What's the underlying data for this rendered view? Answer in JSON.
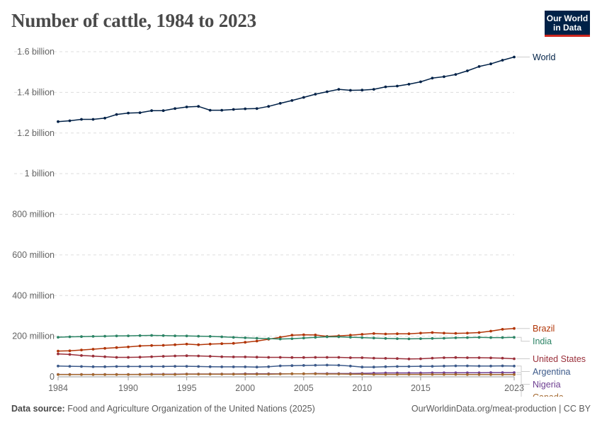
{
  "title": "Number of cattle, 1984 to 2023",
  "logo": {
    "line1": "Our World",
    "line2": "in Data"
  },
  "footer": {
    "source_label": "Data source:",
    "source_text": "Food and Agriculture Organization of the United Nations (2025)",
    "url": "OurWorldinData.org/meat-production | CC BY"
  },
  "chart_data": {
    "type": "line",
    "title": "Number of cattle, 1984 to 2023",
    "xlabel": "",
    "ylabel": "",
    "xlim": [
      1984,
      2023
    ],
    "ylim": [
      0,
      1600000000
    ],
    "grid": true,
    "legend": "right",
    "x": [
      1984,
      1985,
      1986,
      1987,
      1988,
      1989,
      1990,
      1991,
      1992,
      1993,
      1994,
      1995,
      1996,
      1997,
      1998,
      1999,
      2000,
      2001,
      2002,
      2003,
      2004,
      2005,
      2006,
      2007,
      2008,
      2009,
      2010,
      2011,
      2012,
      2013,
      2014,
      2015,
      2016,
      2017,
      2018,
      2019,
      2020,
      2021,
      2022,
      2023
    ],
    "x_ticks": [
      1984,
      1990,
      1995,
      2000,
      2005,
      2010,
      2015,
      2023
    ],
    "x_tick_labels": [
      "1984",
      "1990",
      "1995",
      "2000",
      "2005",
      "2010",
      "2015",
      "2023"
    ],
    "y_ticks": [
      0,
      200000000,
      400000000,
      600000000,
      800000000,
      1000000000,
      1200000000,
      1400000000,
      1600000000
    ],
    "y_tick_labels": [
      "0",
      "200 million",
      "400 million",
      "600 million",
      "800 million",
      "1 billion",
      "1.2 billion",
      "1.4 billion",
      "1.6 billion"
    ],
    "series": [
      {
        "name": "World",
        "color": "#002147",
        "values": [
          1256000000,
          1260000000,
          1267000000,
          1267000000,
          1273000000,
          1291000000,
          1298000000,
          1300000000,
          1310000000,
          1310000000,
          1320000000,
          1328000000,
          1331000000,
          1312000000,
          1312000000,
          1316000000,
          1319000000,
          1320000000,
          1331000000,
          1346000000,
          1360000000,
          1375000000,
          1391000000,
          1403000000,
          1415000000,
          1410000000,
          1411000000,
          1415000000,
          1427000000,
          1431000000,
          1440000000,
          1452000000,
          1470000000,
          1477000000,
          1488000000,
          1506000000,
          1527000000,
          1540000000,
          1558000000,
          1574000000
        ]
      },
      {
        "name": "Brazil",
        "color": "#b13507",
        "values": [
          127000000,
          128000000,
          132000000,
          136000000,
          140000000,
          144000000,
          147000000,
          152000000,
          154000000,
          155000000,
          158000000,
          161000000,
          158000000,
          161000000,
          163000000,
          165000000,
          170000000,
          176000000,
          185000000,
          195000000,
          205000000,
          207000000,
          206000000,
          199000000,
          202000000,
          205000000,
          209000000,
          213000000,
          211000000,
          212000000,
          212000000,
          215000000,
          218000000,
          215000000,
          214000000,
          215000000,
          218000000,
          225000000,
          234000000,
          238000000
        ]
      },
      {
        "name": "India",
        "color": "#2c8465",
        "values": [
          195000000,
          197000000,
          198000000,
          199000000,
          200000000,
          201000000,
          202000000,
          203000000,
          204000000,
          203000000,
          202000000,
          201000000,
          200000000,
          199000000,
          197000000,
          194000000,
          192000000,
          190000000,
          188000000,
          186000000,
          188000000,
          191000000,
          194000000,
          197000000,
          197000000,
          195000000,
          193000000,
          191000000,
          189000000,
          188000000,
          187000000,
          188000000,
          189000000,
          190000000,
          192000000,
          193000000,
          194000000,
          193000000,
          193000000,
          194000000
        ]
      },
      {
        "name": "United States",
        "color": "#9a2f3a",
        "values": [
          113000000,
          110000000,
          105000000,
          102000000,
          99000000,
          96000000,
          96000000,
          97000000,
          99000000,
          101000000,
          103000000,
          104000000,
          103000000,
          101000000,
          99000000,
          98000000,
          98000000,
          97000000,
          96000000,
          96000000,
          95000000,
          95000000,
          96000000,
          96000000,
          96000000,
          94000000,
          94000000,
          92000000,
          91000000,
          90000000,
          88000000,
          89000000,
          92000000,
          94000000,
          95000000,
          94000000,
          94000000,
          93000000,
          92000000,
          89000000
        ]
      },
      {
        "name": "Argentina",
        "color": "#3c5a8a",
        "values": [
          53000000,
          52000000,
          51000000,
          50000000,
          50000000,
          51000000,
          51000000,
          51000000,
          51000000,
          51000000,
          52000000,
          52000000,
          51000000,
          50000000,
          49000000,
          49000000,
          49000000,
          48000000,
          50000000,
          54000000,
          55000000,
          56000000,
          57000000,
          58000000,
          57000000,
          53000000,
          48000000,
          48000000,
          50000000,
          51000000,
          51000000,
          52000000,
          52000000,
          53000000,
          54000000,
          54000000,
          53000000,
          53000000,
          54000000,
          53000000
        ]
      },
      {
        "name": "Nigeria",
        "color": "#6d3e91",
        "values": [
          12000000,
          12000000,
          12000000,
          12000000,
          12000000,
          12000000,
          12000000,
          12000000,
          13000000,
          13000000,
          13000000,
          14000000,
          14000000,
          14000000,
          14000000,
          14000000,
          15000000,
          15000000,
          15000000,
          15000000,
          15000000,
          15000000,
          16000000,
          16000000,
          16000000,
          16000000,
          17000000,
          18000000,
          19000000,
          19000000,
          19000000,
          19000000,
          20000000,
          20000000,
          20000000,
          20000000,
          20000000,
          21000000,
          21000000,
          21000000
        ]
      },
      {
        "name": "Canada",
        "color": "#a2662c",
        "values": [
          11000000,
          11000000,
          11000000,
          11000000,
          11000000,
          11000000,
          11000000,
          12000000,
          12000000,
          12000000,
          12000000,
          13000000,
          13000000,
          13000000,
          13000000,
          13000000,
          13000000,
          13000000,
          13000000,
          14000000,
          15000000,
          15000000,
          15000000,
          14000000,
          14000000,
          13000000,
          13000000,
          12000000,
          12000000,
          12000000,
          12000000,
          12000000,
          12000000,
          12000000,
          12000000,
          11000000,
          11000000,
          11000000,
          11000000,
          11000000
        ]
      }
    ]
  }
}
